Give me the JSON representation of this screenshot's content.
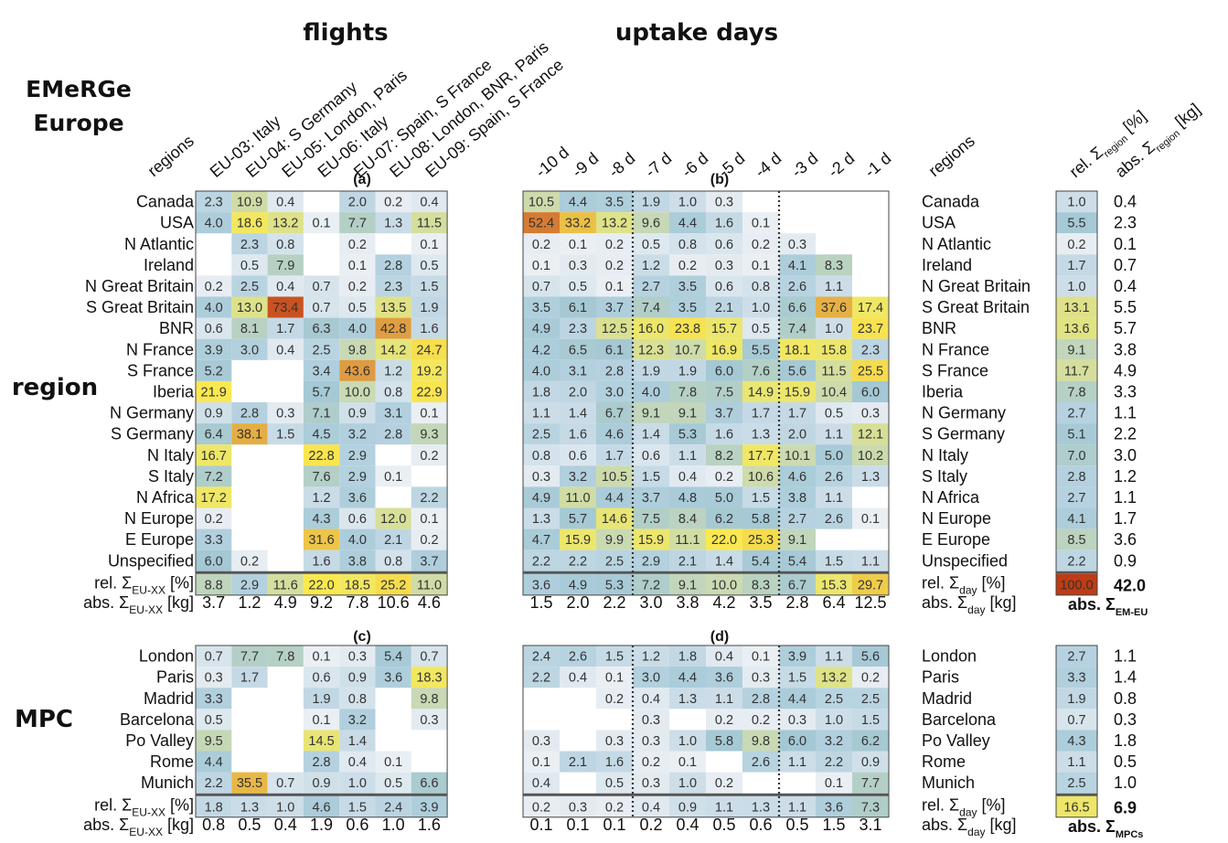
{
  "titles": {
    "flights": "flights",
    "uptake_days": "uptake days",
    "emerge_line1": "EMeRGe",
    "emerge_line2": "Europe",
    "region": "region",
    "mpc": "MPC"
  },
  "column_headers": {
    "regions": "regions",
    "flights": [
      "EU-03: Italy",
      "EU-04: S Germany",
      "EU-05: London, Paris",
      "EU-06: Italy",
      "EU-07: Spain, S France",
      "EU-08: London, BNR, Paris",
      "EU-09: Spain, S France"
    ],
    "days": [
      "-10 d",
      "-9 d",
      "-8 d",
      "-7 d",
      "-6 d",
      "-5 d",
      "-4 d",
      "-3 d",
      "-2 d",
      "-1 d"
    ],
    "rel_region": "rel. Σ",
    "rel_region_sub": "region",
    "rel_region_unit": "[%]",
    "abs_region": "abs. Σ",
    "abs_region_sub": "region",
    "abs_region_unit": "[kg]"
  },
  "panel_labels": {
    "a": "(a)",
    "b": "(b)",
    "c": "(c)",
    "d": "(d)"
  },
  "sum_labels": {
    "rel_eu": {
      "main": "rel. Σ",
      "sub": "EU-XX",
      "unit": "[%]"
    },
    "abs_eu": {
      "main": "abs. Σ",
      "sub": "EU-XX",
      "unit": "[kg]"
    },
    "rel_day": {
      "main": "rel. Σ",
      "sub": "day",
      "unit": "[%]"
    },
    "abs_day": {
      "main": "abs. Σ",
      "sub": "day",
      "unit": "[kg]"
    },
    "abs_em": {
      "main": "abs. Σ",
      "sub": "EM-EU"
    },
    "abs_mpc": {
      "main": "abs. Σ",
      "sub": "MPCs"
    }
  },
  "chart_data": {
    "type": "heatmap",
    "colormap_max": 100,
    "colors": [
      "#a9cddc",
      "#c7d9c7",
      "#e9e25f",
      "#ffe93c",
      "#dd9b3c",
      "#c9431a"
    ],
    "europe": {
      "regions": [
        "Canada",
        "USA",
        "N Atlantic",
        "Ireland",
        "N Great Britain",
        "S Great Britain",
        "BNR",
        "N France",
        "S France",
        "Iberia",
        "N Germany",
        "S Germany",
        "N Italy",
        "S Italy",
        "N Africa",
        "N Europe",
        "E Europe",
        "Unspecified"
      ],
      "flights": [
        [
          2.3,
          10.9,
          0.4,
          null,
          2.0,
          0.2,
          0.4
        ],
        [
          4.0,
          18.6,
          13.2,
          0.1,
          7.7,
          1.3,
          11.5
        ],
        [
          null,
          2.3,
          0.8,
          null,
          0.2,
          null,
          0.1
        ],
        [
          null,
          0.5,
          7.9,
          null,
          0.1,
          2.8,
          0.5
        ],
        [
          0.2,
          2.5,
          0.4,
          0.7,
          0.2,
          2.3,
          1.5
        ],
        [
          4.0,
          13.0,
          73.4,
          0.7,
          0.5,
          13.5,
          1.9
        ],
        [
          0.6,
          8.1,
          1.7,
          6.3,
          4.0,
          42.8,
          1.6
        ],
        [
          3.9,
          3.0,
          0.4,
          2.5,
          9.8,
          14.2,
          24.7
        ],
        [
          5.2,
          null,
          null,
          3.4,
          43.6,
          1.2,
          19.2
        ],
        [
          21.9,
          null,
          null,
          5.7,
          10.0,
          0.8,
          22.9
        ],
        [
          0.9,
          2.8,
          0.3,
          7.1,
          0.9,
          3.1,
          0.1
        ],
        [
          6.4,
          38.1,
          1.5,
          4.5,
          3.2,
          2.8,
          9.3
        ],
        [
          16.7,
          null,
          null,
          22.8,
          2.9,
          null,
          0.2
        ],
        [
          7.2,
          null,
          null,
          7.6,
          2.9,
          0.1,
          null
        ],
        [
          17.2,
          null,
          null,
          1.2,
          3.6,
          null,
          2.2
        ],
        [
          0.2,
          null,
          null,
          4.3,
          0.6,
          12.0,
          0.1
        ],
        [
          3.3,
          null,
          null,
          31.6,
          4.0,
          2.1,
          0.2
        ],
        [
          6.0,
          0.2,
          null,
          1.6,
          3.8,
          0.8,
          3.7
        ]
      ],
      "flights_rel_sum": [
        8.8,
        2.9,
        11.6,
        22.0,
        18.5,
        25.2,
        11.0
      ],
      "flights_abs_sum": [
        3.7,
        1.2,
        4.9,
        9.2,
        7.8,
        10.6,
        4.6
      ],
      "days": [
        [
          10.5,
          4.4,
          3.5,
          1.9,
          1.0,
          0.3,
          null,
          null,
          null,
          null
        ],
        [
          52.4,
          33.2,
          13.2,
          9.6,
          4.4,
          1.6,
          0.1,
          null,
          null,
          null
        ],
        [
          0.2,
          0.1,
          0.2,
          0.5,
          0.8,
          0.6,
          0.2,
          0.3,
          null,
          null
        ],
        [
          0.1,
          0.3,
          0.2,
          1.2,
          0.2,
          0.3,
          0.1,
          4.1,
          8.3,
          null
        ],
        [
          0.7,
          0.5,
          0.1,
          2.7,
          3.5,
          0.6,
          0.8,
          2.6,
          1.1,
          null
        ],
        [
          3.5,
          6.1,
          3.7,
          7.4,
          3.5,
          2.1,
          1.0,
          6.6,
          37.6,
          17.4
        ],
        [
          4.9,
          2.3,
          12.5,
          16.0,
          23.8,
          15.7,
          0.5,
          7.4,
          1.0,
          23.7
        ],
        [
          4.2,
          6.5,
          6.1,
          12.3,
          10.7,
          16.9,
          5.5,
          18.1,
          15.8,
          2.3
        ],
        [
          4.0,
          3.1,
          2.8,
          1.9,
          1.9,
          6.0,
          7.6,
          5.6,
          11.5,
          25.5
        ],
        [
          1.8,
          2.0,
          3.0,
          4.0,
          7.8,
          7.5,
          14.9,
          15.9,
          10.4,
          6.0
        ],
        [
          1.1,
          1.4,
          6.7,
          9.1,
          9.1,
          3.7,
          1.7,
          1.7,
          0.5,
          0.3
        ],
        [
          2.5,
          1.6,
          4.6,
          1.4,
          5.3,
          1.6,
          1.3,
          2.0,
          1.1,
          12.1
        ],
        [
          0.8,
          0.6,
          1.7,
          0.6,
          1.1,
          8.2,
          17.7,
          10.1,
          5.0,
          10.2
        ],
        [
          0.3,
          3.2,
          10.5,
          1.5,
          0.4,
          0.2,
          10.6,
          4.6,
          2.6,
          1.3
        ],
        [
          4.9,
          11.0,
          4.4,
          3.7,
          4.8,
          5.0,
          1.5,
          3.8,
          1.1,
          null
        ],
        [
          1.3,
          5.7,
          14.6,
          7.5,
          8.4,
          6.2,
          5.8,
          2.7,
          2.6,
          0.1
        ],
        [
          4.7,
          15.9,
          9.9,
          15.9,
          11.1,
          22.0,
          25.3,
          9.1,
          null,
          null
        ],
        [
          2.2,
          2.2,
          2.5,
          2.9,
          2.1,
          1.4,
          5.4,
          5.4,
          1.5,
          1.1
        ]
      ],
      "days_rel_sum": [
        3.6,
        4.9,
        5.3,
        7.2,
        9.1,
        10.0,
        8.3,
        6.7,
        15.3,
        29.7
      ],
      "days_abs_sum": [
        1.5,
        2.0,
        2.2,
        3.0,
        3.8,
        4.2,
        3.5,
        2.8,
        6.4,
        12.5
      ],
      "region_rel": [
        1.0,
        5.5,
        0.2,
        1.7,
        1.0,
        13.1,
        13.6,
        9.1,
        11.7,
        7.8,
        2.7,
        5.1,
        7.0,
        2.8,
        2.7,
        4.1,
        8.5,
        2.2
      ],
      "region_abs": [
        0.4,
        2.3,
        0.1,
        0.7,
        0.4,
        5.5,
        5.7,
        3.8,
        4.9,
        3.3,
        1.1,
        2.2,
        3.0,
        1.2,
        1.1,
        1.7,
        3.6,
        0.9
      ],
      "total_rel": 100,
      "total_abs": 42.0
    },
    "mpc": {
      "regions": [
        "London",
        "Paris",
        "Madrid",
        "Barcelona",
        "Po Valley",
        "Rome",
        "Munich"
      ],
      "flights": [
        [
          0.7,
          7.7,
          7.8,
          0.1,
          0.3,
          5.4,
          0.7
        ],
        [
          0.3,
          1.7,
          null,
          0.6,
          0.9,
          3.6,
          18.3
        ],
        [
          3.3,
          null,
          null,
          1.9,
          0.8,
          null,
          9.8
        ],
        [
          0.5,
          null,
          null,
          0.1,
          3.2,
          null,
          0.3
        ],
        [
          9.5,
          null,
          null,
          14.5,
          1.4,
          null,
          null
        ],
        [
          4.4,
          null,
          null,
          2.8,
          0.4,
          0.1,
          null
        ],
        [
          2.2,
          35.5,
          0.7,
          0.9,
          1.0,
          0.5,
          6.6
        ]
      ],
      "flights_rel_sum": [
        1.8,
        1.3,
        1.0,
        4.6,
        1.5,
        2.4,
        3.9
      ],
      "flights_abs_sum": [
        0.8,
        0.5,
        0.4,
        1.9,
        0.6,
        1.0,
        1.6
      ],
      "days": [
        [
          2.4,
          2.6,
          1.5,
          1.2,
          1.8,
          0.4,
          0.1,
          3.9,
          1.1,
          5.6
        ],
        [
          2.2,
          0.4,
          0.1,
          3.0,
          4.4,
          3.6,
          0.3,
          1.5,
          13.2,
          0.2
        ],
        [
          null,
          null,
          0.2,
          0.4,
          1.3,
          1.1,
          2.8,
          4.4,
          2.5,
          2.5
        ],
        [
          null,
          null,
          null,
          0.3,
          null,
          0.2,
          0.2,
          0.3,
          1.0,
          1.5
        ],
        [
          0.3,
          null,
          0.3,
          0.3,
          1.0,
          5.8,
          9.8,
          6.0,
          3.2,
          6.2
        ],
        [
          0.1,
          2.1,
          1.6,
          0.2,
          0.1,
          null,
          2.6,
          1.1,
          2.2,
          0.9
        ],
        [
          0.4,
          null,
          0.5,
          0.3,
          1.0,
          0.2,
          null,
          null,
          0.1,
          7.7
        ]
      ],
      "days_rel_sum": [
        0.2,
        0.3,
        0.2,
        0.4,
        0.9,
        1.1,
        1.3,
        1.1,
        3.6,
        7.3
      ],
      "days_abs_sum": [
        0.1,
        0.1,
        0.1,
        0.2,
        0.4,
        0.5,
        0.6,
        0.5,
        1.5,
        3.1
      ],
      "region_rel": [
        2.7,
        3.3,
        1.9,
        0.7,
        4.3,
        1.1,
        2.5
      ],
      "region_abs": [
        1.1,
        1.4,
        0.8,
        0.3,
        1.8,
        0.5,
        1.0
      ],
      "total_rel": 16.5,
      "total_abs": 6.9
    }
  }
}
